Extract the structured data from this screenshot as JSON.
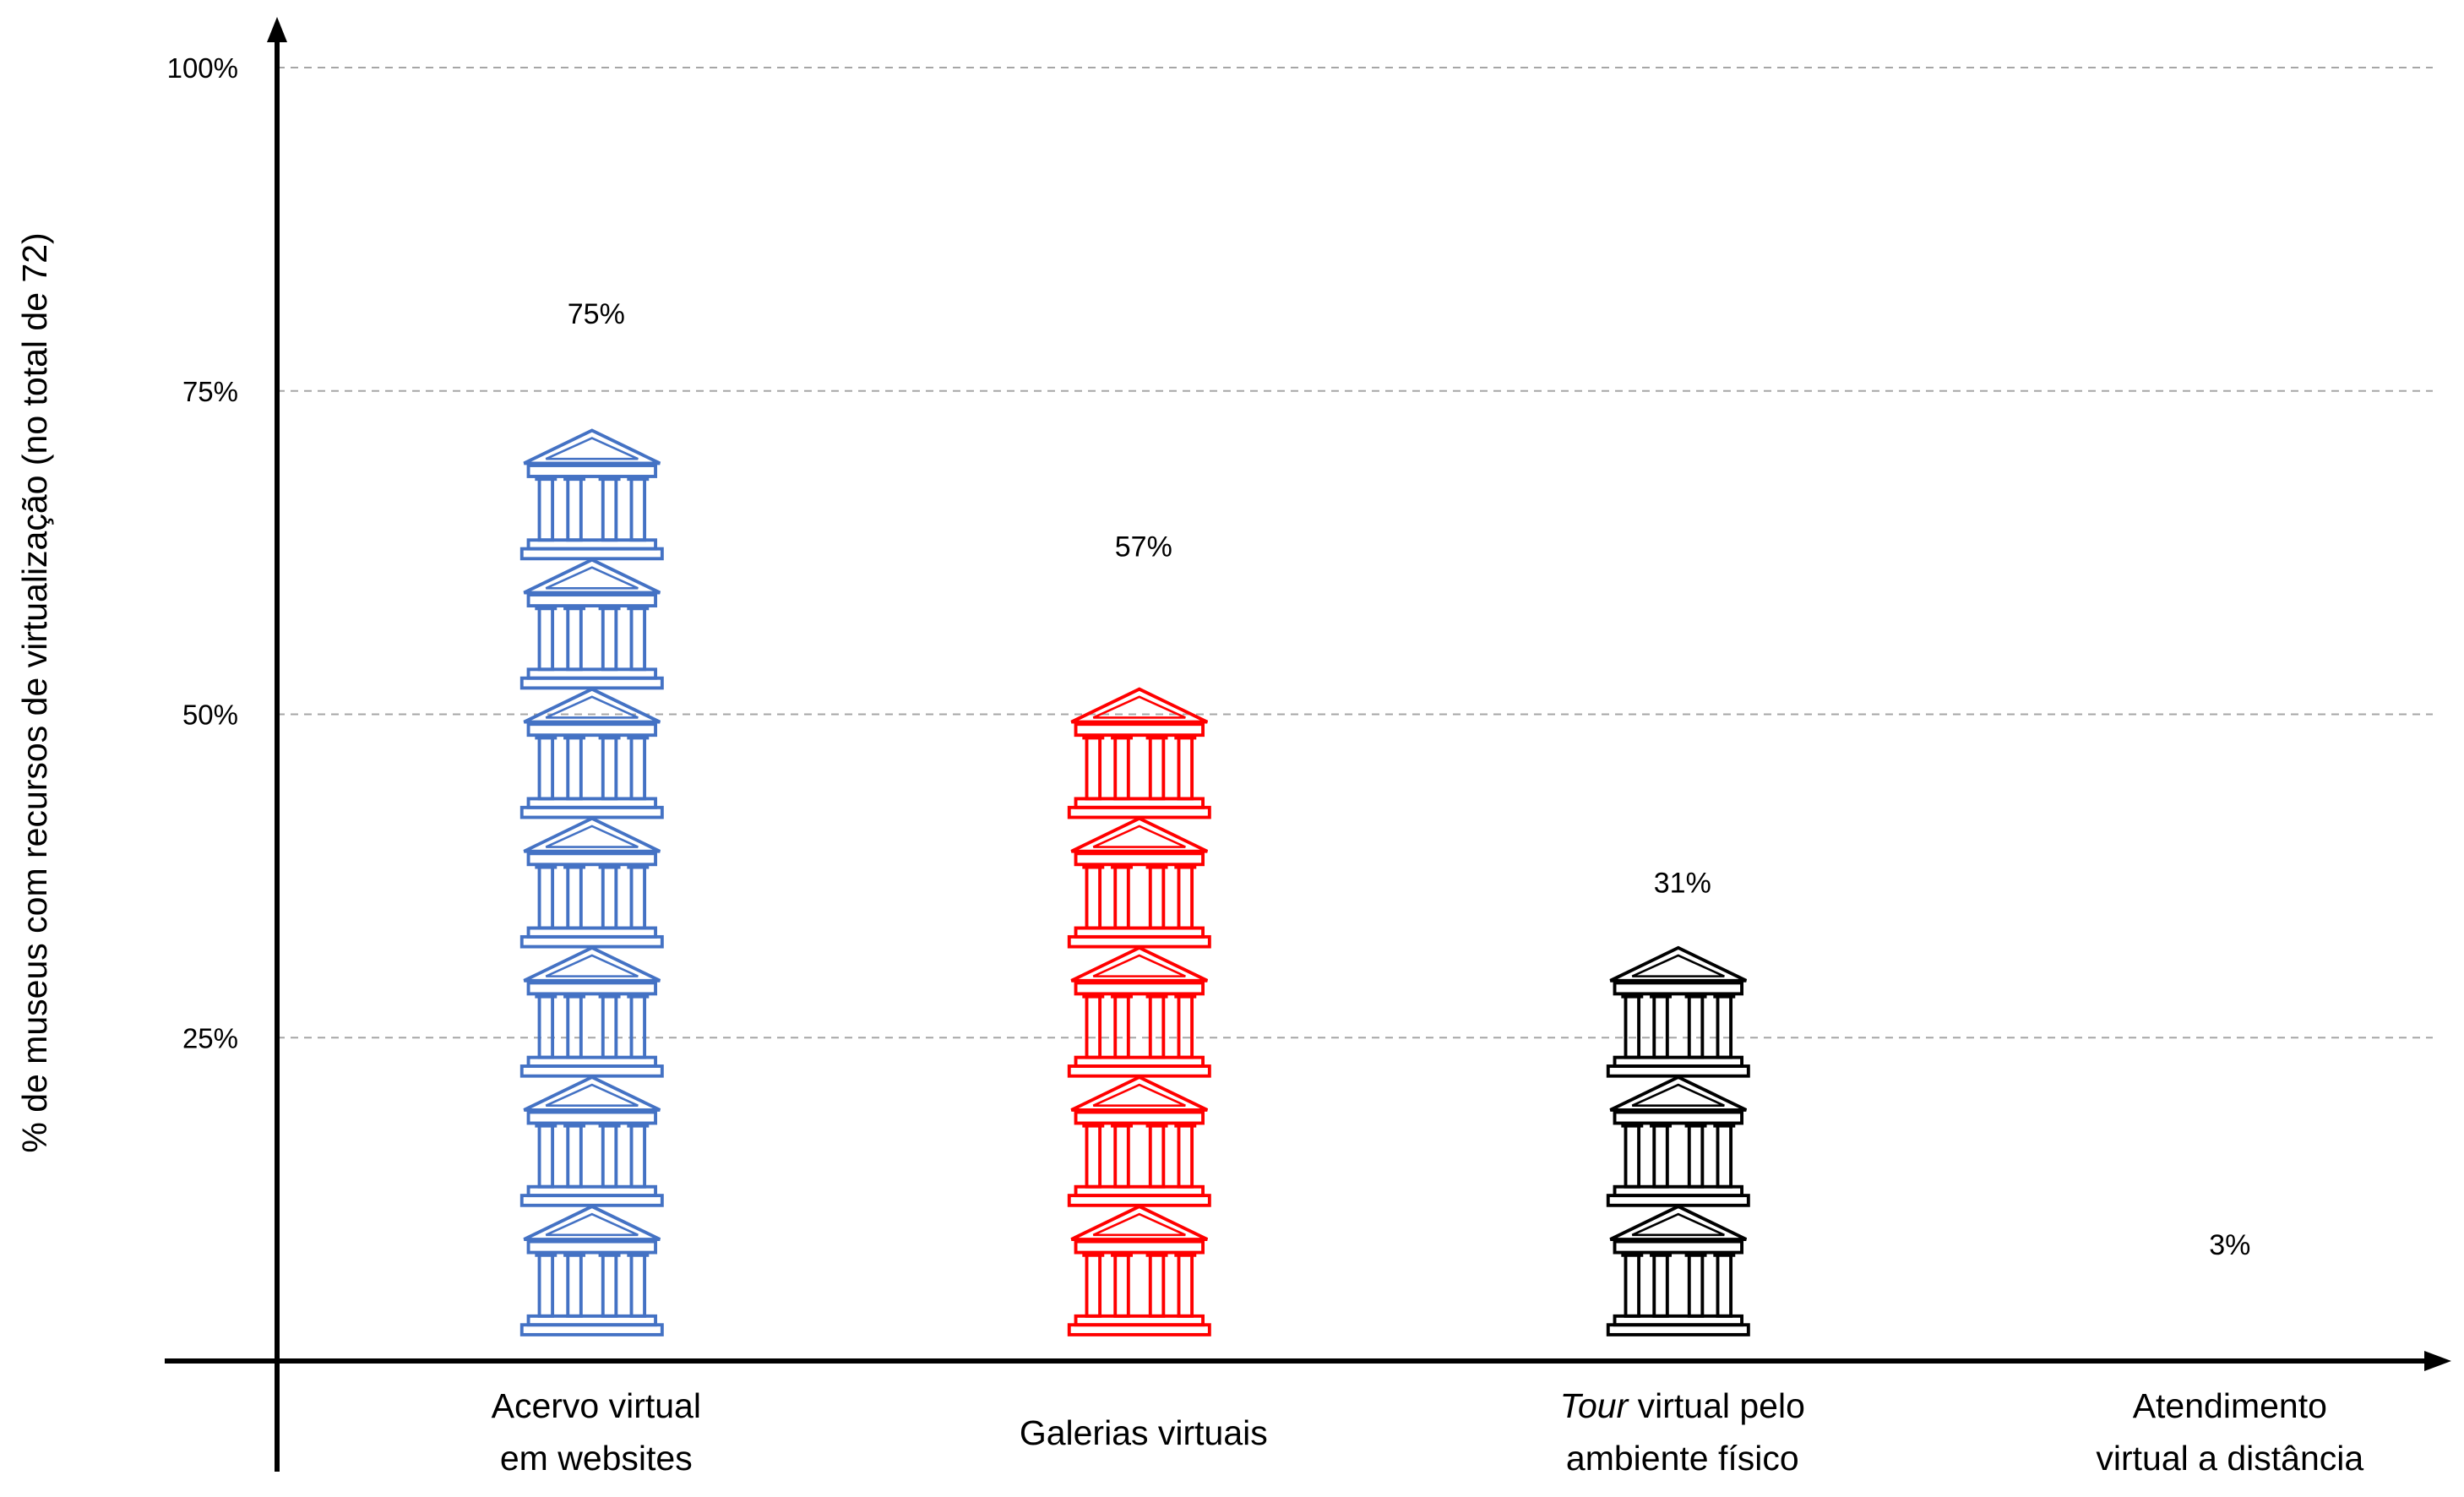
{
  "chart_data": {
    "type": "bar",
    "subtype": "pictograph",
    "title": "",
    "ylabel": "% de museus com recursos de virtualização (no total de 72)",
    "xlabel": "",
    "ylim": [
      0,
      100
    ],
    "yticks": [
      {
        "value": 25,
        "label": "25%"
      },
      {
        "value": 50,
        "label": "50%"
      },
      {
        "value": 75,
        "label": "75%"
      },
      {
        "value": 100,
        "label": "100%"
      }
    ],
    "grid": true,
    "icon": "museum-building-icon",
    "icon_unit_percent": 10,
    "categories": [
      {
        "label_lines": [
          "Acervo virtual",
          "em websites"
        ],
        "italic_prefix": "",
        "value": 75,
        "value_label": "75%",
        "color": "#4472c4"
      },
      {
        "label_lines": [
          "Galerias virtuais"
        ],
        "italic_prefix": "",
        "value": 57,
        "value_label": "57%",
        "color": "#ff0000"
      },
      {
        "label_lines": [
          " virtual pelo",
          "ambiente físico"
        ],
        "italic_prefix": "Tour",
        "value": 31,
        "value_label": "31%",
        "color": "#000000"
      },
      {
        "label_lines": [
          "Atendimento",
          "virtual a distância"
        ],
        "italic_prefix": "",
        "value": 3,
        "value_label": "3%",
        "color": "#00b050"
      }
    ]
  }
}
